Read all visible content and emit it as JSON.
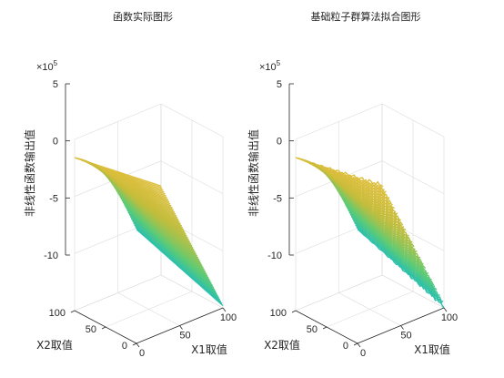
{
  "chart_data": [
    {
      "type": "surface",
      "title": "函数实际图形",
      "xlabel": "X1取值",
      "ylabel": "X2取值",
      "zlabel": "非线性函数输出值",
      "z_exponent_base": "×10",
      "z_exponent_power": "5",
      "xlim": [
        0,
        100
      ],
      "ylim": [
        0,
        100
      ],
      "zlim": [
        -10,
        5
      ],
      "x_ticks": [
        "0",
        "50",
        "100"
      ],
      "y_ticks": [
        "0",
        "50",
        "100"
      ],
      "z_ticks": [
        "-10",
        "-5",
        "0",
        "5"
      ],
      "corner_values_e5": {
        "x0_y0": 0.0,
        "x0_y100": 3.4,
        "x100_y100": -2.2,
        "x100_y0": -9.8
      },
      "colormap": [
        "#3e26a8",
        "#4655e8",
        "#2f96f6",
        "#18bcc3",
        "#5fcb74",
        "#c2bd3c",
        "#fbbf3b",
        "#f9fb15"
      ],
      "noisy": false
    },
    {
      "type": "surface",
      "title": "基础粒子群算法拟合图形",
      "xlabel": "X1取值",
      "ylabel": "X2取值",
      "zlabel": "非线性函数输出值",
      "z_exponent_base": "×10",
      "z_exponent_power": "5",
      "xlim": [
        0,
        100
      ],
      "ylim": [
        0,
        100
      ],
      "zlim": [
        -10,
        5
      ],
      "x_ticks": [
        "0",
        "50",
        "100"
      ],
      "y_ticks": [
        "0",
        "50",
        "100"
      ],
      "z_ticks": [
        "-10",
        "-5",
        "0",
        "5"
      ],
      "corner_values_e5": {
        "x0_y0": 0.0,
        "x0_y100": 3.4,
        "x100_y100": -2.2,
        "x100_y0": -9.8
      },
      "colormap": [
        "#3e26a8",
        "#4655e8",
        "#2f96f6",
        "#18bcc3",
        "#5fcb74",
        "#c2bd3c",
        "#fbbf3b",
        "#f9fb15"
      ],
      "noisy": true
    }
  ]
}
